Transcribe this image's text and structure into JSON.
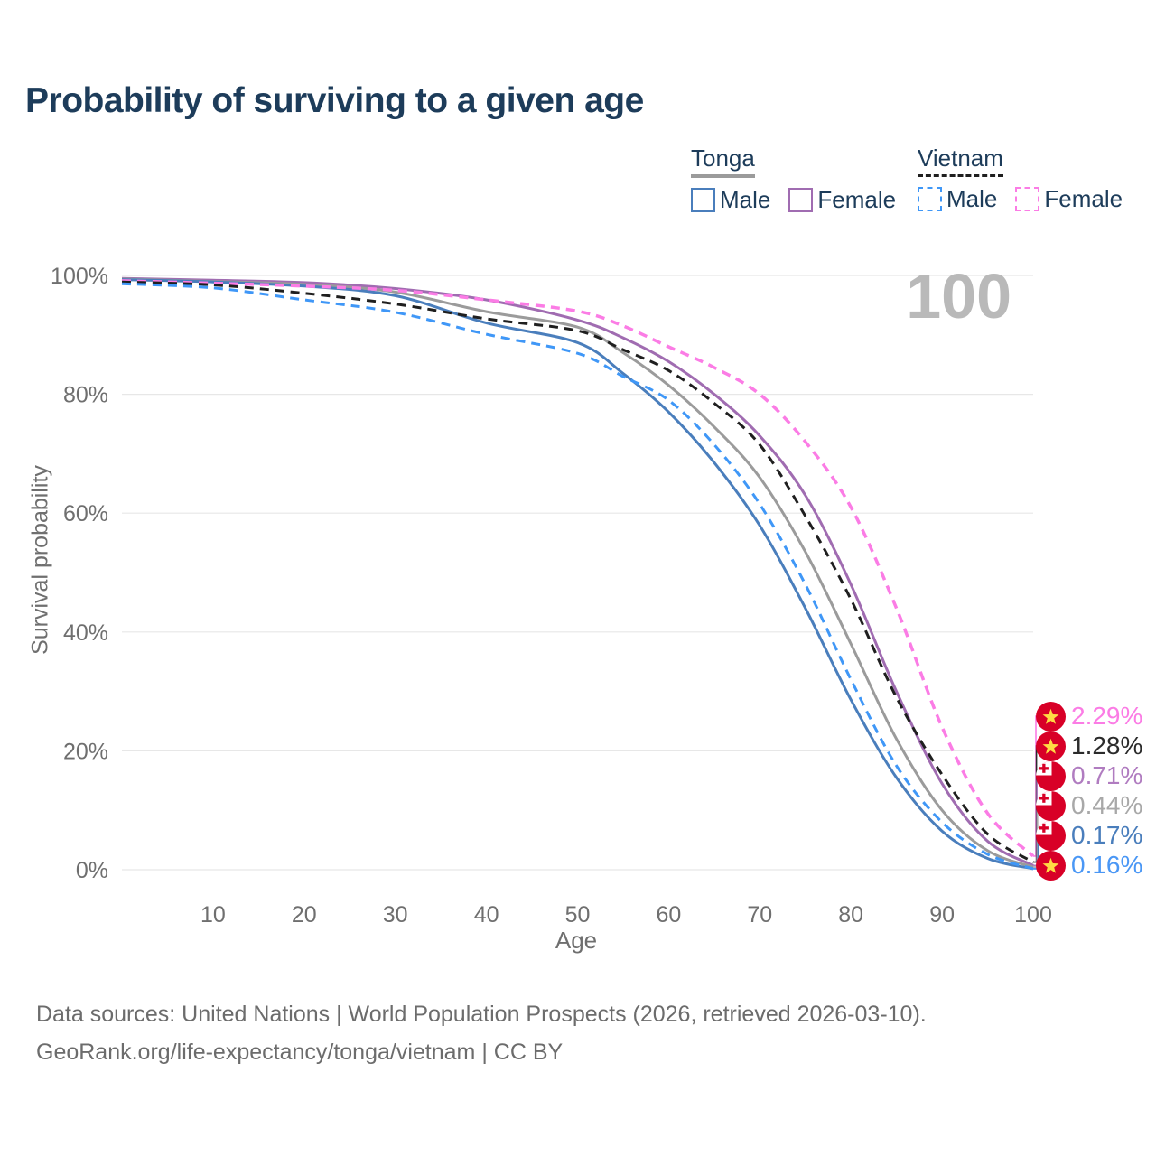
{
  "title": "Probability of surviving to a given age",
  "legend": {
    "groups": [
      {
        "title": "Tonga",
        "underline": "solid",
        "line_color": "#9b9b9b",
        "entries": [
          {
            "label": "Male",
            "color": "#4a7ebc",
            "dash": false
          },
          {
            "label": "Female",
            "color": "#a06cb1",
            "dash": false
          }
        ]
      },
      {
        "title": "Vietnam",
        "underline": "dashed",
        "line_color": "#1f1f1f",
        "entries": [
          {
            "label": "Male",
            "color": "#3f97f7",
            "dash": true
          },
          {
            "label": "Female",
            "color": "#fb7ce5",
            "dash": true
          }
        ]
      }
    ]
  },
  "chart_data": {
    "type": "line",
    "title": "Probability of surviving to a given age",
    "xlabel": "Age",
    "ylabel": "Survival probability",
    "xlim": [
      0,
      100
    ],
    "ylim": [
      0,
      100
    ],
    "grid": "horizontal",
    "grid_color": "#e7e7e7",
    "tick_color": "#6f6f6f",
    "watermark": "100",
    "x_ticks": [
      {
        "label": "10",
        "value": 10
      },
      {
        "label": "20",
        "value": 20
      },
      {
        "label": "30",
        "value": 30
      },
      {
        "label": "40",
        "value": 40
      },
      {
        "label": "50",
        "value": 50
      },
      {
        "label": "60",
        "value": 60
      },
      {
        "label": "70",
        "value": 70
      },
      {
        "label": "80",
        "value": 80
      },
      {
        "label": "90",
        "value": 90
      },
      {
        "label": "100",
        "value": 100
      }
    ],
    "y_ticks": [
      {
        "label": "0%",
        "value": 0
      },
      {
        "label": "20%",
        "value": 20
      },
      {
        "label": "40%",
        "value": 40
      },
      {
        "label": "60%",
        "value": 60
      },
      {
        "label": "80%",
        "value": 80
      },
      {
        "label": "100%",
        "value": 100
      }
    ],
    "x": [
      0,
      10,
      20,
      30,
      40,
      50,
      55,
      60,
      65,
      70,
      75,
      80,
      85,
      90,
      95,
      100
    ],
    "series": [
      {
        "name": "Vietnam Female",
        "country": "Vietnam",
        "sex": "Female",
        "color": "#fb7ce5",
        "dash": true,
        "width": 3.5,
        "values": [
          99.1,
          98.7,
          98.2,
          97.5,
          95.9,
          94.0,
          91.5,
          88.0,
          84.5,
          80.0,
          72.0,
          61.0,
          44.0,
          24.0,
          9.5,
          2.29
        ]
      },
      {
        "name": "Vietnam",
        "country": "Vietnam",
        "sex": "Both",
        "color": "#1f1f1f",
        "dash": true,
        "width": 3,
        "values": [
          98.9,
          98.4,
          97.0,
          95.2,
          92.7,
          90.7,
          87.5,
          84.0,
          78.5,
          71.5,
          59.5,
          45.5,
          29.0,
          16.0,
          6.0,
          1.28
        ]
      },
      {
        "name": "Tonga Female",
        "country": "Tonga",
        "sex": "Female",
        "color": "#a06cb1",
        "dash": false,
        "width": 3,
        "values": [
          99.5,
          99.2,
          98.8,
          97.8,
          95.9,
          92.5,
          89.5,
          85.5,
          80.0,
          73.0,
          63.0,
          48.0,
          30.0,
          14.5,
          4.8,
          0.71
        ]
      },
      {
        "name": "Tonga",
        "country": "Tonga",
        "sex": "Both",
        "color": "#9b9b9b",
        "dash": false,
        "width": 3,
        "values": [
          99.4,
          99.0,
          98.5,
          97.2,
          93.9,
          91.3,
          87.0,
          81.5,
          74.5,
          66.0,
          53.5,
          38.0,
          22.0,
          10.0,
          3.2,
          0.44
        ]
      },
      {
        "name": "Tonga Male",
        "country": "Tonga",
        "sex": "Male",
        "color": "#4a7ebc",
        "dash": false,
        "width": 3,
        "values": [
          99.3,
          98.9,
          98.2,
          96.6,
          92.0,
          88.7,
          83.5,
          77.0,
          68.5,
          57.9,
          44.0,
          28.6,
          15.5,
          6.5,
          1.9,
          0.17
        ]
      },
      {
        "name": "Vietnam Male",
        "country": "Vietnam",
        "sex": "Male",
        "color": "#3f97f7",
        "dash": true,
        "width": 3,
        "values": [
          98.6,
          97.9,
          95.9,
          93.8,
          90.1,
          86.9,
          83.0,
          79.0,
          71.5,
          61.5,
          48.0,
          32.0,
          17.5,
          8.0,
          2.6,
          0.16
        ]
      }
    ],
    "end_labels": [
      {
        "value": "2.29%",
        "pct": 2.29,
        "flag": "vietnam",
        "color": "#fb7ce5"
      },
      {
        "value": "1.28%",
        "pct": 1.28,
        "flag": "vietnam",
        "color": "#2b2b2b"
      },
      {
        "value": "0.71%",
        "pct": 0.71,
        "flag": "tonga",
        "color": "#b07cc0"
      },
      {
        "value": "0.44%",
        "pct": 0.44,
        "flag": "tonga",
        "color": "#a8a8a8"
      },
      {
        "value": "0.17%",
        "pct": 0.17,
        "flag": "tonga",
        "color": "#4a7ebc"
      },
      {
        "value": "0.16%",
        "pct": 0.16,
        "flag": "vietnam",
        "color": "#4a97f5"
      }
    ],
    "flag_colors": {
      "red": "#d80027",
      "yellow": "#ffda44",
      "white": "#ffffff"
    }
  },
  "footer": {
    "line1": "Data sources: United Nations | World Population Prospects (2026, retrieved 2026-03-10).",
    "line2": "GeoRank.org/life-expectancy/tonga/vietnam | CC BY"
  }
}
